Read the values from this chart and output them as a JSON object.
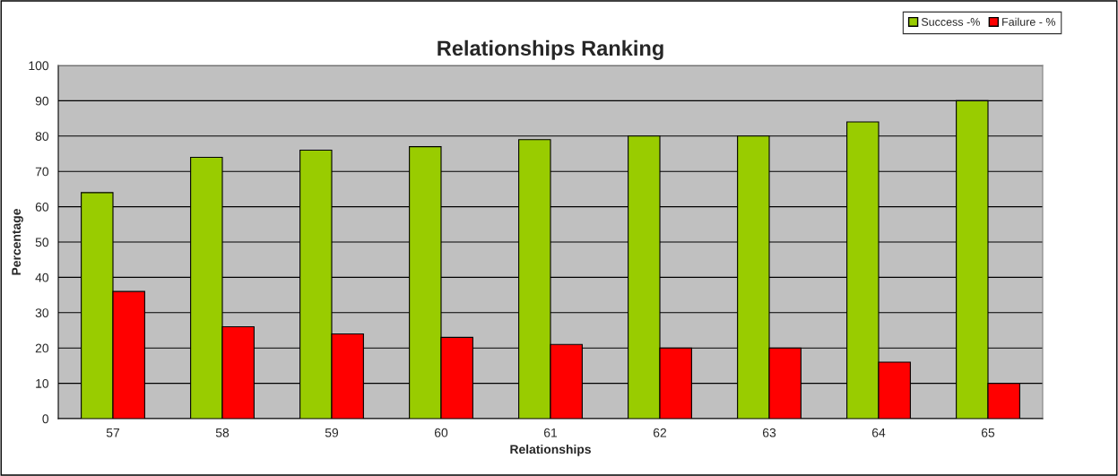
{
  "chart_data": {
    "type": "bar",
    "title": "Relationships Ranking",
    "xlabel": "Relationships",
    "ylabel": "Percentage",
    "categories": [
      "57",
      "58",
      "59",
      "60",
      "61",
      "62",
      "63",
      "64",
      "65"
    ],
    "series": [
      {
        "name": "Success -%",
        "color": "#99cc00",
        "values": [
          64,
          74,
          76,
          77,
          79,
          80,
          80,
          84,
          90
        ]
      },
      {
        "name": "Failure - %",
        "color": "#ff0000",
        "values": [
          36,
          26,
          24,
          23,
          21,
          20,
          20,
          16,
          10
        ]
      }
    ],
    "ylim": [
      0,
      100
    ],
    "yticks": [
      0,
      10,
      20,
      30,
      40,
      50,
      60,
      70,
      80,
      90,
      100
    ],
    "grid": "y",
    "legend": "top right"
  }
}
